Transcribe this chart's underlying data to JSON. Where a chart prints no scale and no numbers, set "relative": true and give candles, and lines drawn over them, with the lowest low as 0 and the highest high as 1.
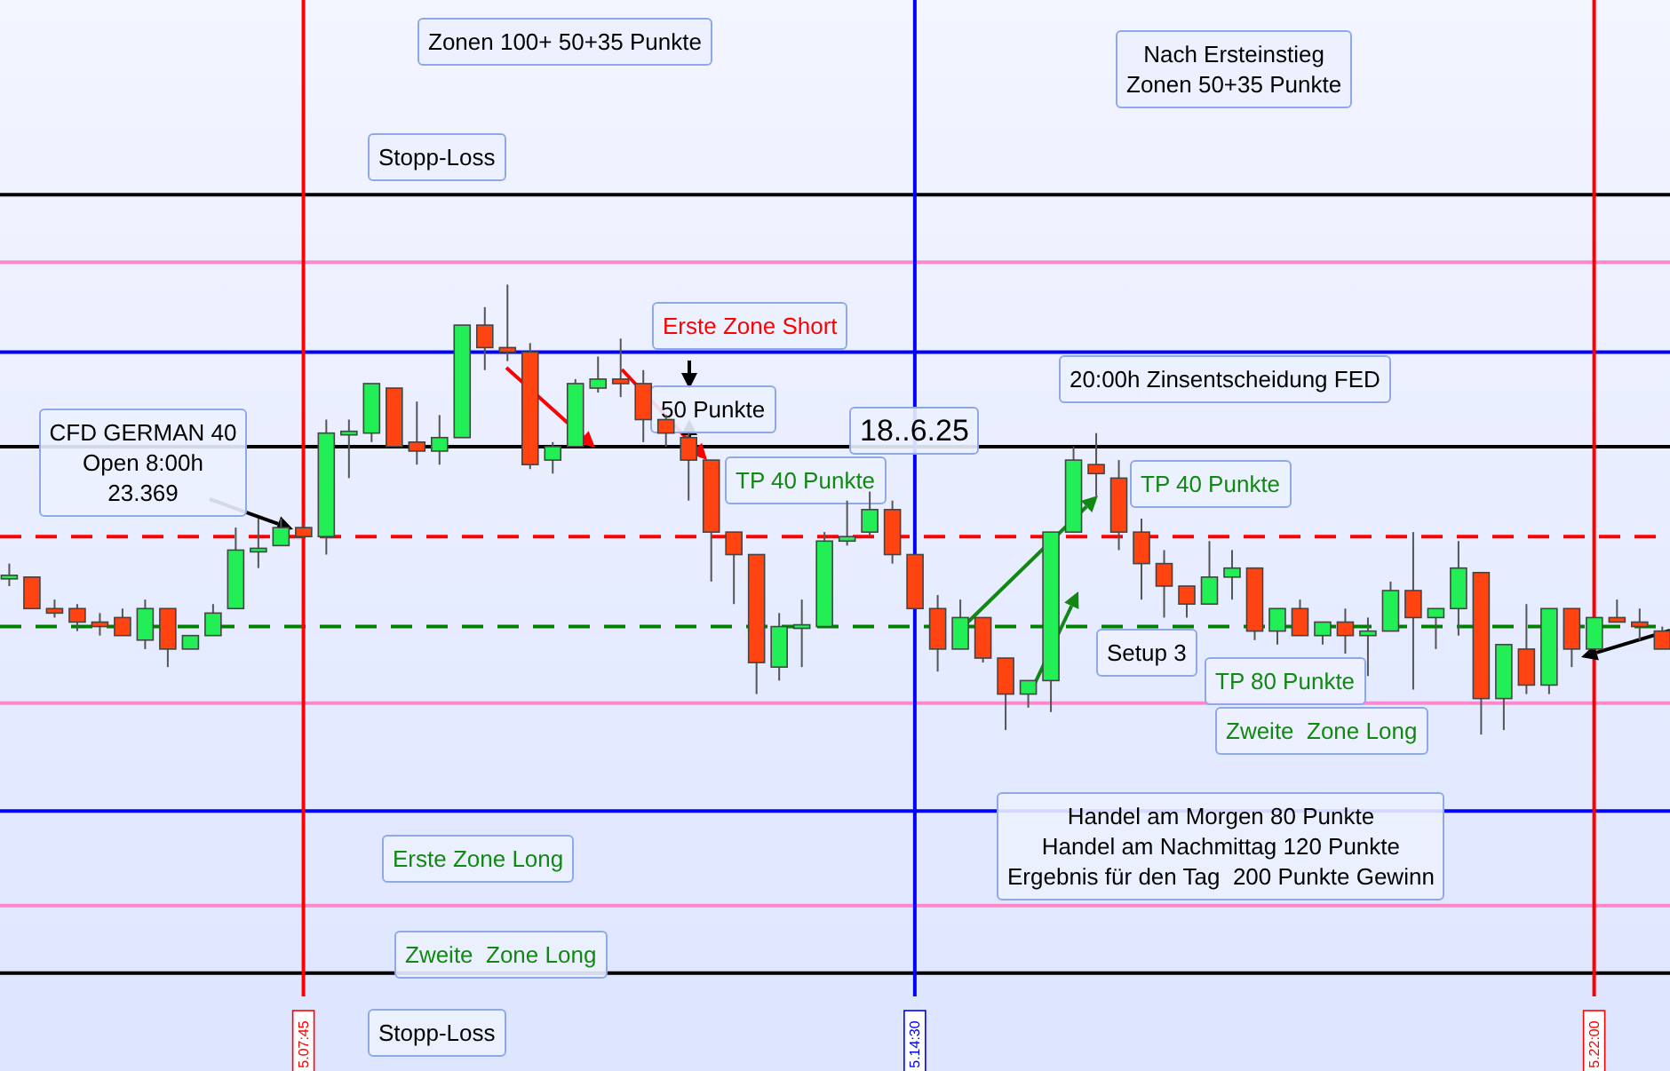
{
  "chart_data": {
    "type": "candlestick",
    "relative": true,
    "tick_labels": "x",
    "grid": false,
    "categories": [
      null,
      null,
      null,
      null,
      null,
      null,
      null,
      null,
      null,
      null,
      null,
      null,
      null,
      "5.07:45",
      null,
      null,
      null,
      null,
      null,
      null,
      null,
      null,
      null,
      null,
      null,
      null,
      null,
      null,
      null,
      null,
      null,
      null,
      null,
      null,
      null,
      null,
      null,
      null,
      null,
      null,
      "5.14:30",
      null,
      null,
      null,
      null,
      null,
      null,
      null,
      null,
      null,
      null,
      null,
      null,
      null,
      null,
      null,
      null,
      null,
      null,
      null,
      null,
      null,
      null,
      null,
      null,
      null,
      null,
      null,
      null,
      null,
      "5.22:00",
      null,
      null,
      null
    ],
    "ohlc": [
      [
        0.35,
        0.38,
        0.33,
        0.35
      ],
      [
        0.35,
        0.35,
        0.28,
        0.28
      ],
      [
        0.28,
        0.3,
        0.26,
        0.27
      ],
      [
        0.28,
        0.29,
        0.23,
        0.25
      ],
      [
        0.25,
        0.27,
        0.22,
        0.24
      ],
      [
        0.26,
        0.28,
        0.22,
        0.22
      ],
      [
        0.21,
        0.3,
        0.19,
        0.28
      ],
      [
        0.28,
        0.28,
        0.15,
        0.19
      ],
      [
        0.19,
        0.22,
        0.19,
        0.22
      ],
      [
        0.22,
        0.29,
        0.22,
        0.27
      ],
      [
        0.28,
        0.46,
        0.28,
        0.41
      ],
      [
        0.41,
        0.48,
        0.37,
        0.41
      ],
      [
        0.42,
        0.48,
        0.42,
        0.46
      ],
      [
        0.46,
        0.47,
        0.44,
        0.44
      ],
      [
        0.44,
        0.7,
        0.4,
        0.67
      ],
      [
        0.67,
        0.7,
        0.57,
        0.67
      ],
      [
        0.67,
        0.78,
        0.65,
        0.78
      ],
      [
        0.77,
        0.77,
        0.64,
        0.64
      ],
      [
        0.65,
        0.74,
        0.6,
        0.63
      ],
      [
        0.63,
        0.71,
        0.6,
        0.66
      ],
      [
        0.66,
        0.91,
        0.66,
        0.91
      ],
      [
        0.91,
        0.95,
        0.81,
        0.86
      ],
      [
        0.86,
        1.0,
        0.83,
        0.85
      ],
      [
        0.85,
        0.87,
        0.59,
        0.6
      ],
      [
        0.61,
        0.65,
        0.58,
        0.64
      ],
      [
        0.64,
        0.79,
        0.64,
        0.78
      ],
      [
        0.77,
        0.84,
        0.76,
        0.79
      ],
      [
        0.79,
        0.88,
        0.75,
        0.78
      ],
      [
        0.78,
        0.81,
        0.65,
        0.7
      ],
      [
        0.7,
        0.71,
        0.64,
        0.67
      ],
      [
        0.66,
        0.67,
        0.52,
        0.61
      ],
      [
        0.61,
        0.61,
        0.34,
        0.45
      ],
      [
        0.45,
        0.45,
        0.29,
        0.4
      ],
      [
        0.4,
        0.4,
        0.09,
        0.16
      ],
      [
        0.15,
        0.27,
        0.12,
        0.24
      ],
      [
        0.24,
        0.3,
        0.15,
        0.24
      ],
      [
        0.24,
        0.45,
        0.24,
        0.43
      ],
      [
        0.43,
        0.52,
        0.42,
        0.44
      ],
      [
        0.45,
        0.54,
        0.44,
        0.5
      ],
      [
        0.5,
        0.52,
        0.38,
        0.4
      ],
      [
        0.4,
        0.4,
        0.28,
        0.28
      ],
      [
        0.28,
        0.31,
        0.14,
        0.19
      ],
      [
        0.19,
        0.3,
        0.19,
        0.26
      ],
      [
        0.26,
        0.26,
        0.16,
        0.17
      ],
      [
        0.17,
        0.17,
        0.01,
        0.09
      ],
      [
        0.09,
        0.12,
        0.06,
        0.12
      ],
      [
        0.12,
        0.45,
        0.05,
        0.45
      ],
      [
        0.45,
        0.64,
        0.45,
        0.61
      ],
      [
        0.6,
        0.67,
        0.53,
        0.58
      ],
      [
        0.57,
        0.61,
        0.41,
        0.45
      ],
      [
        0.45,
        0.48,
        0.3,
        0.38
      ],
      [
        0.38,
        0.41,
        0.26,
        0.33
      ],
      [
        0.33,
        0.33,
        0.26,
        0.29
      ],
      [
        0.29,
        0.43,
        0.29,
        0.35
      ],
      [
        0.35,
        0.41,
        0.3,
        0.37
      ],
      [
        0.37,
        0.37,
        0.21,
        0.23
      ],
      [
        0.23,
        0.28,
        0.2,
        0.28
      ],
      [
        0.28,
        0.3,
        0.22,
        0.22
      ],
      [
        0.22,
        0.25,
        0.2,
        0.25
      ],
      [
        0.25,
        0.28,
        0.18,
        0.22
      ],
      [
        0.22,
        0.26,
        0.13,
        0.23
      ],
      [
        0.23,
        0.34,
        0.23,
        0.32
      ],
      [
        0.32,
        0.45,
        0.1,
        0.26
      ],
      [
        0.26,
        0.28,
        0.19,
        0.28
      ],
      [
        0.28,
        0.43,
        0.22,
        0.37
      ],
      [
        0.36,
        0.36,
        0,
        0.08
      ],
      [
        0.08,
        0.2,
        0.01,
        0.2
      ],
      [
        0.19,
        0.29,
        0.09,
        0.11
      ],
      [
        0.11,
        0.28,
        0.09,
        0.28
      ],
      [
        0.28,
        0.28,
        0.15,
        0.19
      ],
      [
        0.19,
        0.26,
        0.19,
        0.26
      ],
      [
        0.26,
        0.3,
        0.25,
        0.25
      ],
      [
        0.25,
        0.28,
        0.21,
        0.24
      ],
      [
        0.23,
        0.24,
        0.19,
        0.19
      ]
    ],
    "ref_lines": [
      {
        "axis": "y",
        "value": 1.2,
        "color": "#000000"
      },
      {
        "axis": "y",
        "value": 1.05,
        "color": "#ff88cc"
      },
      {
        "axis": "y",
        "value": 0.85,
        "color": "#0000ff"
      },
      {
        "axis": "y",
        "value": 0.64,
        "color": "#000000"
      },
      {
        "axis": "y",
        "value": 0.44,
        "color": "#ff0000",
        "line_style": "dashed"
      },
      {
        "axis": "y",
        "value": 0.24,
        "color": "#008000",
        "line_style": "dashed"
      },
      {
        "axis": "y",
        "value": 0.07,
        "color": "#ff88cc"
      },
      {
        "axis": "y",
        "value": -0.17,
        "color": "#0000ff"
      },
      {
        "axis": "y",
        "value": -0.38,
        "color": "#ff88cc"
      },
      {
        "axis": "y",
        "value": -0.53,
        "color": "#000000"
      },
      {
        "axis": "x",
        "value": "5.07:45",
        "color": "#ff0000"
      },
      {
        "axis": "x",
        "value": "5.14:30",
        "color": "#0000ff"
      },
      {
        "axis": "x",
        "value": "5.22:00",
        "color": "#ff0000"
      }
    ],
    "annotations": [
      "Zonen 100+ 50+35 Punkte",
      "Nach Ersteinstieg\nZonen 50+35 Punkte",
      "Stopp-Loss",
      "Erste Zone Short",
      {
        "text": "50 Punkte",
        "y": 0.85
      },
      {
        "text": "TP 40 Punkte",
        "y": 0.64
      },
      {
        "text": "CFD GERMAN 40\nOpen 8:00h\n23.369",
        "x": "5.07:45",
        "y": 0.47
      },
      "18..6.25",
      "20:00h Zinsentscheidung FED",
      "TP 40 Punkte",
      "TP 80 Punkte",
      "Setup 3",
      "Zweite  Zone Long",
      "Handel am Morgen 80 Punkte\nHandel am Nachmittag 120 Punkte\nErgebnis für den Tag  200 Punkte Gewinn",
      "Erste Zone Long",
      "Zweite  Zone Long",
      "Stopp-Loss"
    ]
  }
}
